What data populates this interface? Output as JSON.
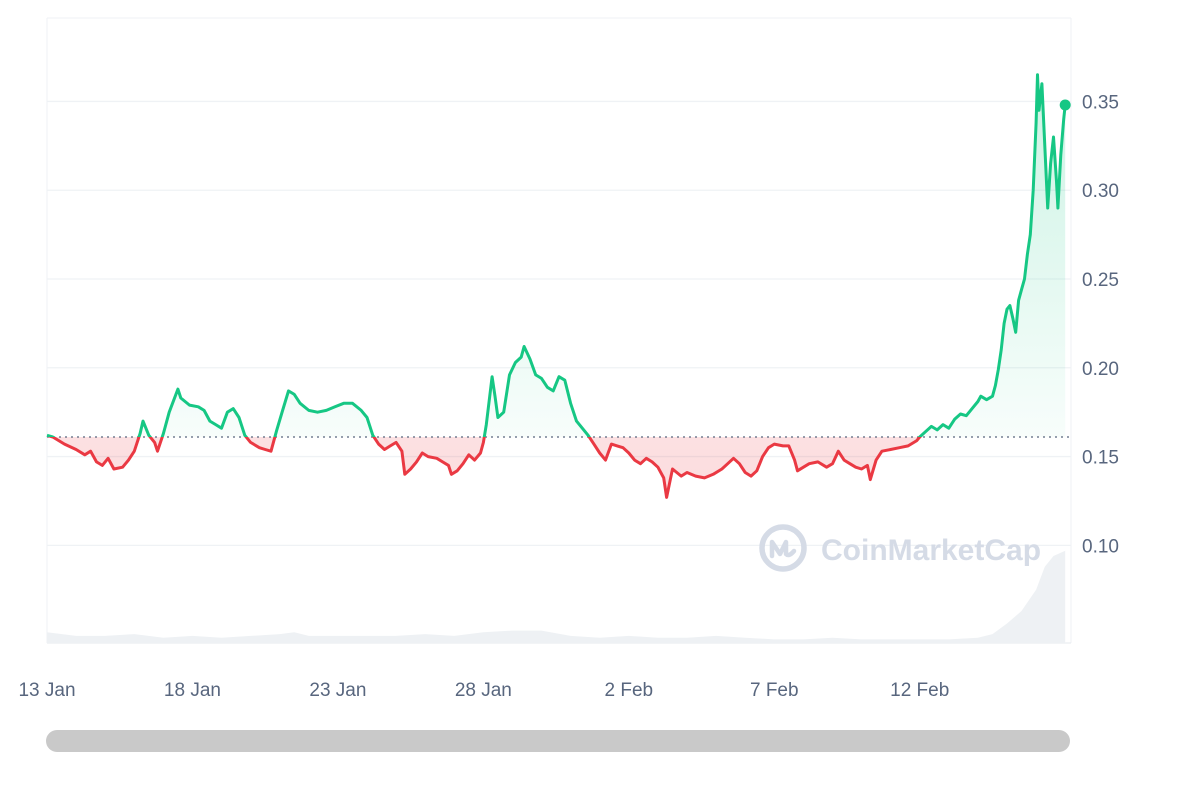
{
  "chart_data": {
    "type": "line",
    "title": "",
    "xlabel": "",
    "ylabel": "",
    "x_ticks": [
      "13 Jan",
      "18 Jan",
      "23 Jan",
      "28 Jan",
      "2 Feb",
      "7 Feb",
      "12 Feb"
    ],
    "y_ticks": [
      "0.10",
      "0.15",
      "0.20",
      "0.25",
      "0.30",
      "0.35"
    ],
    "ylim": [
      0.045,
      0.397
    ],
    "x_range_days": [
      13.0,
      43.0
    ],
    "x_start_date": "13 Jan",
    "baseline": 0.161,
    "grid": true,
    "colors": {
      "up": "#16c784",
      "down": "#ea3943",
      "grid": "#eff2f5",
      "baseline": "#58667e",
      "volume": "#eff2f5"
    },
    "series": [
      {
        "values": [
          [
            13.0,
            0.162
          ],
          [
            13.2,
            0.161
          ],
          [
            13.6,
            0.157
          ],
          [
            14.0,
            0.154
          ],
          [
            14.3,
            0.151
          ],
          [
            14.5,
            0.153
          ],
          [
            14.7,
            0.147
          ],
          [
            14.9,
            0.145
          ],
          [
            15.1,
            0.149
          ],
          [
            15.3,
            0.143
          ],
          [
            15.6,
            0.144
          ],
          [
            15.8,
            0.148
          ],
          [
            16.0,
            0.153
          ],
          [
            16.2,
            0.163
          ],
          [
            16.3,
            0.17
          ],
          [
            16.5,
            0.162
          ],
          [
            16.7,
            0.158
          ],
          [
            16.8,
            0.153
          ],
          [
            17.0,
            0.163
          ],
          [
            17.2,
            0.175
          ],
          [
            17.5,
            0.188
          ],
          [
            17.6,
            0.183
          ],
          [
            17.9,
            0.179
          ],
          [
            18.2,
            0.178
          ],
          [
            18.4,
            0.176
          ],
          [
            18.6,
            0.17
          ],
          [
            18.8,
            0.168
          ],
          [
            19.0,
            0.166
          ],
          [
            19.2,
            0.175
          ],
          [
            19.4,
            0.177
          ],
          [
            19.6,
            0.172
          ],
          [
            19.8,
            0.162
          ],
          [
            20.0,
            0.158
          ],
          [
            20.3,
            0.155
          ],
          [
            20.5,
            0.154
          ],
          [
            20.7,
            0.153
          ],
          [
            20.9,
            0.165
          ],
          [
            21.1,
            0.176
          ],
          [
            21.3,
            0.187
          ],
          [
            21.5,
            0.185
          ],
          [
            21.7,
            0.18
          ],
          [
            22.0,
            0.176
          ],
          [
            22.3,
            0.175
          ],
          [
            22.6,
            0.176
          ],
          [
            22.9,
            0.178
          ],
          [
            23.2,
            0.18
          ],
          [
            23.5,
            0.18
          ],
          [
            23.8,
            0.176
          ],
          [
            24.0,
            0.172
          ],
          [
            24.2,
            0.162
          ],
          [
            24.4,
            0.157
          ],
          [
            24.6,
            0.154
          ],
          [
            24.8,
            0.156
          ],
          [
            25.0,
            0.158
          ],
          [
            25.2,
            0.153
          ],
          [
            25.3,
            0.14
          ],
          [
            25.5,
            0.143
          ],
          [
            25.7,
            0.147
          ],
          [
            25.9,
            0.152
          ],
          [
            26.1,
            0.15
          ],
          [
            26.4,
            0.149
          ],
          [
            26.6,
            0.147
          ],
          [
            26.8,
            0.145
          ],
          [
            26.9,
            0.14
          ],
          [
            27.1,
            0.142
          ],
          [
            27.3,
            0.146
          ],
          [
            27.5,
            0.151
          ],
          [
            27.7,
            0.148
          ],
          [
            27.9,
            0.152
          ],
          [
            28.0,
            0.158
          ],
          [
            28.1,
            0.168
          ],
          [
            28.3,
            0.195
          ],
          [
            28.4,
            0.184
          ],
          [
            28.5,
            0.172
          ],
          [
            28.7,
            0.175
          ],
          [
            28.9,
            0.196
          ],
          [
            29.1,
            0.203
          ],
          [
            29.3,
            0.206
          ],
          [
            29.4,
            0.212
          ],
          [
            29.6,
            0.205
          ],
          [
            29.8,
            0.196
          ],
          [
            30.0,
            0.194
          ],
          [
            30.2,
            0.189
          ],
          [
            30.4,
            0.187
          ],
          [
            30.6,
            0.195
          ],
          [
            30.8,
            0.193
          ],
          [
            31.0,
            0.18
          ],
          [
            31.2,
            0.17
          ],
          [
            31.4,
            0.166
          ],
          [
            31.6,
            0.162
          ],
          [
            31.8,
            0.157
          ],
          [
            32.0,
            0.152
          ],
          [
            32.2,
            0.148
          ],
          [
            32.4,
            0.157
          ],
          [
            32.6,
            0.156
          ],
          [
            32.8,
            0.155
          ],
          [
            33.0,
            0.152
          ],
          [
            33.2,
            0.148
          ],
          [
            33.4,
            0.146
          ],
          [
            33.6,
            0.149
          ],
          [
            33.8,
            0.147
          ],
          [
            34.0,
            0.144
          ],
          [
            34.2,
            0.138
          ],
          [
            34.3,
            0.127
          ],
          [
            34.5,
            0.143
          ],
          [
            34.8,
            0.139
          ],
          [
            35.0,
            0.141
          ],
          [
            35.3,
            0.139
          ],
          [
            35.6,
            0.138
          ],
          [
            35.9,
            0.14
          ],
          [
            36.2,
            0.143
          ],
          [
            36.4,
            0.146
          ],
          [
            36.6,
            0.149
          ],
          [
            36.8,
            0.146
          ],
          [
            37.0,
            0.141
          ],
          [
            37.2,
            0.139
          ],
          [
            37.4,
            0.142
          ],
          [
            37.6,
            0.15
          ],
          [
            37.8,
            0.155
          ],
          [
            38.0,
            0.157
          ],
          [
            38.3,
            0.156
          ],
          [
            38.5,
            0.156
          ],
          [
            38.7,
            0.148
          ],
          [
            38.8,
            0.142
          ],
          [
            39.0,
            0.144
          ],
          [
            39.2,
            0.146
          ],
          [
            39.5,
            0.147
          ],
          [
            39.8,
            0.144
          ],
          [
            40.0,
            0.146
          ],
          [
            40.2,
            0.153
          ],
          [
            40.4,
            0.148
          ],
          [
            40.6,
            0.146
          ],
          [
            40.8,
            0.144
          ],
          [
            41.0,
            0.143
          ],
          [
            41.2,
            0.145
          ],
          [
            41.3,
            0.137
          ],
          [
            41.5,
            0.148
          ],
          [
            41.7,
            0.153
          ],
          [
            42.0,
            0.154
          ],
          [
            42.3,
            0.155
          ],
          [
            42.6,
            0.156
          ],
          [
            42.9,
            0.159
          ],
          [
            43.0,
            0.161
          ],
          [
            43.2,
            0.164
          ],
          [
            43.4,
            0.167
          ],
          [
            43.6,
            0.165
          ],
          [
            43.8,
            0.168
          ],
          [
            44.0,
            0.166
          ],
          [
            44.2,
            0.171
          ],
          [
            44.4,
            0.174
          ],
          [
            44.6,
            0.173
          ],
          [
            44.8,
            0.177
          ],
          [
            45.0,
            0.181
          ],
          [
            45.1,
            0.184
          ],
          [
            45.3,
            0.182
          ],
          [
            45.5,
            0.184
          ],
          [
            45.6,
            0.19
          ],
          [
            45.7,
            0.199
          ],
          [
            45.8,
            0.21
          ],
          [
            45.9,
            0.225
          ],
          [
            46.0,
            0.233
          ],
          [
            46.1,
            0.235
          ],
          [
            46.2,
            0.228
          ],
          [
            46.3,
            0.22
          ],
          [
            46.4,
            0.238
          ],
          [
            46.5,
            0.244
          ],
          [
            46.6,
            0.25
          ],
          [
            46.7,
            0.264
          ],
          [
            46.8,
            0.275
          ],
          [
            46.9,
            0.3
          ],
          [
            47.0,
            0.338
          ],
          [
            47.05,
            0.365
          ],
          [
            47.1,
            0.345
          ],
          [
            47.2,
            0.36
          ],
          [
            47.3,
            0.325
          ],
          [
            47.4,
            0.29
          ],
          [
            47.5,
            0.315
          ],
          [
            47.6,
            0.33
          ],
          [
            47.7,
            0.305
          ],
          [
            47.75,
            0.29
          ],
          [
            47.85,
            0.32
          ],
          [
            47.95,
            0.34
          ],
          [
            48.0,
            0.348
          ]
        ]
      }
    ],
    "volume": [
      [
        13.0,
        0.051
      ],
      [
        14.0,
        0.049
      ],
      [
        15.0,
        0.049
      ],
      [
        16.0,
        0.05
      ],
      [
        17.0,
        0.048
      ],
      [
        18.0,
        0.049
      ],
      [
        19.0,
        0.048
      ],
      [
        20.0,
        0.049
      ],
      [
        21.0,
        0.05
      ],
      [
        21.5,
        0.051
      ],
      [
        22.0,
        0.049
      ],
      [
        23.0,
        0.049
      ],
      [
        24.0,
        0.049
      ],
      [
        25.0,
        0.049
      ],
      [
        26.0,
        0.05
      ],
      [
        27.0,
        0.049
      ],
      [
        28.0,
        0.051
      ],
      [
        29.0,
        0.052
      ],
      [
        30.0,
        0.052
      ],
      [
        31.0,
        0.049
      ],
      [
        32.0,
        0.048
      ],
      [
        33.0,
        0.049
      ],
      [
        34.0,
        0.048
      ],
      [
        35.0,
        0.048
      ],
      [
        36.0,
        0.049
      ],
      [
        37.0,
        0.048
      ],
      [
        38.0,
        0.047
      ],
      [
        39.0,
        0.047
      ],
      [
        40.0,
        0.048
      ],
      [
        41.0,
        0.047
      ],
      [
        42.0,
        0.047
      ],
      [
        43.0,
        0.047
      ],
      [
        44.0,
        0.047
      ],
      [
        45.0,
        0.048
      ],
      [
        45.5,
        0.05
      ],
      [
        46.0,
        0.056
      ],
      [
        46.5,
        0.063
      ],
      [
        47.0,
        0.075
      ],
      [
        47.3,
        0.088
      ],
      [
        47.6,
        0.094
      ],
      [
        48.0,
        0.097
      ]
    ]
  },
  "watermark": {
    "text": "CoinMarketCap",
    "icon": "coinmarketcap-logo-icon"
  },
  "scrollbar": {
    "position": 1.0
  }
}
